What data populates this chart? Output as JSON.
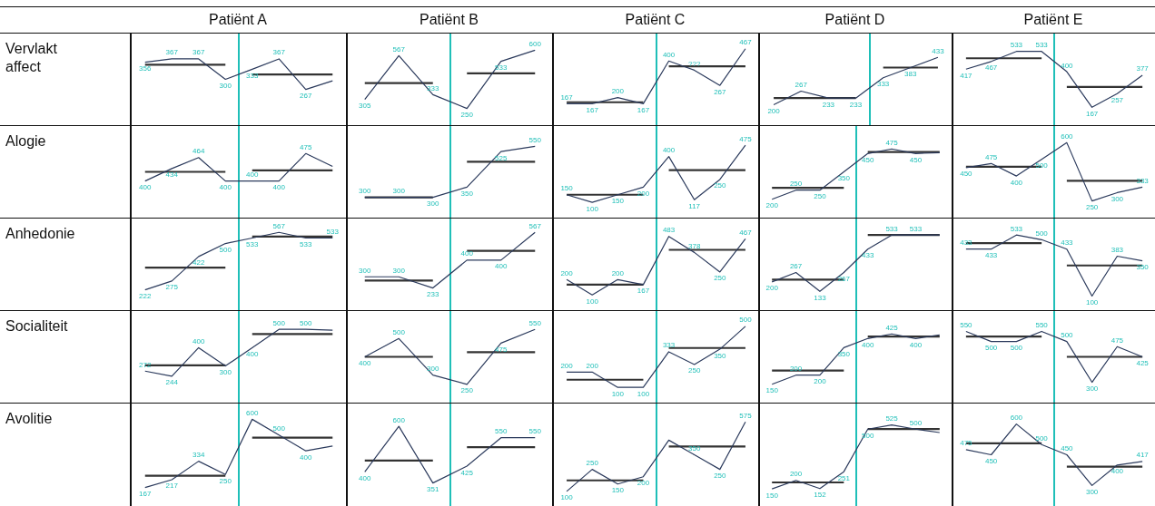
{
  "chart_data": [
    {
      "type": "line",
      "title": "Patiënt A",
      "ylabel": "Vervlakt affect",
      "categories": [
        null,
        null,
        null,
        null,
        null,
        null,
        null,
        null
      ],
      "ylim": [
        150,
        450
      ],
      "marker": "none",
      "series": [
        {
          "color": "#2b3a5c",
          "values": [
            356,
            367,
            367,
            300,
            333,
            367,
            267,
            295
          ],
          "value_labels": [
            "356",
            "367",
            "367",
            "300",
            "333",
            "367",
            "267",
            null
          ]
        },
        {
          "color": "#333333",
          "values": [
            348,
            348,
            348,
            348,
            null,
            null,
            null,
            null
          ]
        },
        {
          "color": "#333333",
          "values": [
            null,
            null,
            null,
            null,
            316,
            316,
            316,
            316
          ]
        }
      ]
    },
    {
      "type": "line",
      "title": "Patiënt B",
      "categories": [
        null,
        null,
        null,
        null,
        null,
        null
      ],
      "ylim": [
        150,
        700
      ],
      "marker": "none",
      "series": [
        {
          "color": "#2b3a5c",
          "values": [
            305,
            567,
            333,
            250,
            533,
            600
          ],
          "value_labels": [
            "305",
            "567",
            "333",
            "250",
            "533",
            "600"
          ]
        },
        {
          "color": "#333333",
          "values": [
            402,
            402,
            402,
            null,
            null,
            null
          ]
        },
        {
          "color": "#333333",
          "values": [
            null,
            null,
            null,
            461,
            461,
            461
          ]
        }
      ]
    },
    {
      "type": "line",
      "title": "Patiënt C",
      "categories": [
        null,
        null,
        null,
        null,
        null,
        null,
        null,
        null
      ],
      "ylim": [
        50,
        550
      ],
      "marker": "none",
      "series": [
        {
          "color": "#2b3a5c",
          "values": [
            167,
            167,
            200,
            167,
            400,
            350,
            267,
            467
          ],
          "value_labels": [
            "167",
            "167",
            "200",
            "167",
            "400",
            "???",
            "267",
            "467"
          ]
        },
        {
          "color": "#333333",
          "values": [
            175,
            175,
            175,
            175,
            null,
            null,
            null,
            null
          ]
        },
        {
          "color": "#333333",
          "values": [
            null,
            null,
            null,
            null,
            371,
            371,
            371,
            371
          ]
        }
      ]
    },
    {
      "type": "line",
      "title": "Patiënt D",
      "categories": [
        null,
        null,
        null,
        null,
        null,
        null,
        null
      ],
      "ylim": [
        100,
        550
      ],
      "marker": "none",
      "series": [
        {
          "color": "#2b3a5c",
          "values": [
            200,
            267,
            233,
            233,
            333,
            383,
            433
          ],
          "value_labels": [
            "200",
            "267",
            "233",
            "233",
            "333",
            "383",
            "433"
          ]
        },
        {
          "color": "#333333",
          "values": [
            233,
            233,
            233,
            233,
            null,
            null,
            null
          ]
        },
        {
          "color": "#333333",
          "values": [
            null,
            null,
            null,
            null,
            383,
            383,
            383
          ]
        }
      ]
    },
    {
      "type": "line",
      "title": "Patiënt E",
      "categories": [
        null,
        null,
        null,
        null,
        null,
        null,
        null,
        null
      ],
      "ylim": [
        50,
        650
      ],
      "marker": "none",
      "series": [
        {
          "color": "#2b3a5c",
          "values": [
            417,
            467,
            533,
            533,
            400,
            167,
            257,
            377
          ],
          "value_labels": [
            "417",
            "467",
            "533",
            "533",
            "400",
            "167",
            "257",
            "377"
          ]
        },
        {
          "color": "#333333",
          "values": [
            488,
            488,
            488,
            488,
            null,
            null,
            null,
            null
          ]
        },
        {
          "color": "#333333",
          "values": [
            null,
            null,
            null,
            null,
            300,
            300,
            300,
            300
          ]
        }
      ]
    },
    {
      "type": "line",
      "ylabel": "Alogie",
      "categories": [
        null,
        null,
        null,
        null,
        null,
        null,
        null,
        null
      ],
      "ylim": [
        300,
        550
      ],
      "marker": "none",
      "series": [
        {
          "color": "#2b3a5c",
          "values": [
            400,
            434,
            464,
            400,
            400,
            400,
            475,
            440
          ],
          "value_labels": [
            "400",
            "434",
            "464",
            "400",
            "400",
            "400",
            "475",
            null
          ]
        },
        {
          "color": "#333333",
          "values": [
            425,
            425,
            425,
            425,
            null,
            null,
            null,
            null
          ]
        },
        {
          "color": "#333333",
          "values": [
            null,
            null,
            null,
            null,
            429,
            429,
            429,
            429
          ]
        }
      ]
    },
    {
      "type": "line",
      "categories": [
        null,
        null,
        null,
        null,
        null,
        null
      ],
      "ylim": [
        200,
        650
      ],
      "marker": "none",
      "series": [
        {
          "color": "#2b3a5c",
          "values": [
            300,
            300,
            300,
            350,
            525,
            550
          ],
          "value_labels": [
            "300",
            "300",
            "300",
            "350",
            "525",
            "550"
          ]
        },
        {
          "color": "#333333",
          "values": [
            300,
            300,
            300,
            null,
            null,
            null
          ]
        },
        {
          "color": "#333333",
          "values": [
            null,
            null,
            null,
            475,
            475,
            475
          ]
        }
      ]
    },
    {
      "type": "line",
      "categories": [
        null,
        null,
        null,
        null,
        null,
        null,
        null,
        null
      ],
      "ylim": [
        0,
        600
      ],
      "marker": "none",
      "series": [
        {
          "color": "#2b3a5c",
          "values": [
            150,
            100,
            150,
            200,
            400,
            117,
            250,
            475
          ],
          "value_labels": [
            "150",
            "100",
            "150",
            "200",
            "400",
            "117",
            "250",
            "475"
          ]
        },
        {
          "color": "#333333",
          "values": [
            150,
            150,
            150,
            150,
            null,
            null,
            null,
            null
          ]
        },
        {
          "color": "#333333",
          "values": [
            null,
            null,
            null,
            null,
            311,
            311,
            311,
            311
          ]
        }
      ]
    },
    {
      "type": "line",
      "categories": [
        null,
        null,
        null,
        null,
        null,
        null,
        null,
        null
      ],
      "ylim": [
        100,
        600
      ],
      "marker": "none",
      "series": [
        {
          "color": "#2b3a5c",
          "values": [
            200,
            250,
            250,
            350,
            450,
            475,
            450,
            455
          ],
          "value_labels": [
            "200",
            "250",
            "250",
            "350",
            "450",
            "475",
            "450",
            null
          ]
        },
        {
          "color": "#333333",
          "values": [
            263,
            263,
            263,
            263,
            null,
            null,
            null,
            null
          ]
        },
        {
          "color": "#333333",
          "values": [
            null,
            null,
            null,
            null,
            458,
            458,
            458,
            458
          ]
        }
      ]
    },
    {
      "type": "line",
      "categories": [
        null,
        null,
        null,
        null,
        null,
        null,
        null,
        null
      ],
      "ylim": [
        150,
        700
      ],
      "marker": "none",
      "series": [
        {
          "color": "#2b3a5c",
          "values": [
            450,
            475,
            400,
            500,
            600,
            250,
            300,
            333
          ],
          "value_labels": [
            "450",
            "475",
            "400",
            "500",
            "600",
            "250",
            "300",
            "333"
          ]
        },
        {
          "color": "#333333",
          "values": [
            456,
            456,
            456,
            456,
            null,
            null,
            null,
            null
          ]
        },
        {
          "color": "#333333",
          "values": [
            null,
            null,
            null,
            null,
            371,
            371,
            371,
            371
          ]
        }
      ]
    },
    {
      "type": "line",
      "ylabel": "Anhedonie",
      "categories": [
        null,
        null,
        null,
        null,
        null,
        null,
        null,
        null
      ],
      "ylim": [
        100,
        650
      ],
      "marker": "none",
      "series": [
        {
          "color": "#2b3a5c",
          "values": [
            222,
            275,
            422,
            500,
            533,
            567,
            533,
            533
          ],
          "value_labels": [
            "222",
            "275",
            "422",
            "500",
            "533",
            "567",
            "533",
            "533"
          ]
        },
        {
          "color": "#333333",
          "values": [
            355,
            355,
            355,
            355,
            null,
            null,
            null,
            null
          ]
        },
        {
          "color": "#333333",
          "values": [
            null,
            null,
            null,
            null,
            542,
            542,
            542,
            542
          ]
        }
      ]
    },
    {
      "type": "line",
      "categories": [
        null,
        null,
        null,
        null,
        null,
        null
      ],
      "ylim": [
        100,
        650
      ],
      "marker": "none",
      "series": [
        {
          "color": "#2b3a5c",
          "values": [
            300,
            300,
            233,
            400,
            400,
            567
          ],
          "value_labels": [
            "300",
            "300",
            "233",
            "400",
            "400",
            "567"
          ]
        },
        {
          "color": "#333333",
          "values": [
            278,
            278,
            278,
            null,
            null,
            null
          ]
        },
        {
          "color": "#333333",
          "values": [
            null,
            null,
            null,
            456,
            456,
            456
          ]
        }
      ]
    },
    {
      "type": "line",
      "categories": [
        null,
        null,
        null,
        null,
        null,
        null,
        null,
        null
      ],
      "ylim": [
        0,
        600
      ],
      "marker": "none",
      "series": [
        {
          "color": "#2b3a5c",
          "values": [
            200,
            100,
            200,
            167,
            483,
            378,
            250,
            467
          ],
          "value_labels": [
            "200",
            "100",
            "200",
            "167",
            "483",
            "378",
            "250",
            "467"
          ]
        },
        {
          "color": "#333333",
          "values": [
            167,
            167,
            167,
            167,
            null,
            null,
            null,
            null
          ]
        },
        {
          "color": "#333333",
          "values": [
            null,
            null,
            null,
            null,
            395,
            395,
            395,
            395
          ]
        }
      ]
    },
    {
      "type": "line",
      "categories": [
        null,
        null,
        null,
        null,
        null,
        null,
        null,
        null
      ],
      "ylim": [
        0,
        650
      ],
      "marker": "none",
      "series": [
        {
          "color": "#2b3a5c",
          "values": [
            200,
            267,
            133,
            267,
            433,
            533,
            533,
            533
          ],
          "value_labels": [
            "200",
            "267",
            "133",
            "267",
            "433",
            "533",
            "533",
            null
          ]
        },
        {
          "color": "#333333",
          "values": [
            217,
            217,
            217,
            217,
            null,
            null,
            null,
            null
          ]
        },
        {
          "color": "#333333",
          "values": [
            null,
            null,
            null,
            null,
            533,
            533,
            533,
            533
          ]
        }
      ]
    },
    {
      "type": "line",
      "categories": [
        null,
        null,
        null,
        null,
        null,
        null,
        null,
        null
      ],
      "ylim": [
        0,
        650
      ],
      "marker": "none",
      "series": [
        {
          "color": "#2b3a5c",
          "values": [
            433,
            433,
            533,
            500,
            433,
            100,
            383,
            350
          ],
          "value_labels": [
            "433",
            "433",
            "533",
            "500",
            "433",
            "100",
            "383",
            "350"
          ]
        },
        {
          "color": "#333333",
          "values": [
            475,
            475,
            475,
            475,
            null,
            null,
            null,
            null
          ]
        },
        {
          "color": "#333333",
          "values": [
            null,
            null,
            null,
            null,
            317,
            317,
            317,
            317
          ]
        }
      ]
    },
    {
      "type": "line",
      "ylabel": "Socialiteit",
      "categories": [
        null,
        null,
        null,
        null,
        null,
        null,
        null,
        null
      ],
      "ylim": [
        100,
        600
      ],
      "marker": "none",
      "series": [
        {
          "color": "#2b3a5c",
          "values": [
            272,
            244,
            400,
            300,
            400,
            500,
            500,
            495
          ],
          "value_labels": [
            "272",
            "244",
            "400",
            "300",
            "400",
            "500",
            "500",
            null
          ]
        },
        {
          "color": "#333333",
          "values": [
            304,
            304,
            304,
            304,
            null,
            null,
            null,
            null
          ]
        },
        {
          "color": "#333333",
          "values": [
            null,
            null,
            null,
            null,
            474,
            474,
            474,
            474
          ]
        }
      ]
    },
    {
      "type": "line",
      "categories": [
        null,
        null,
        null,
        null,
        null,
        null
      ],
      "ylim": [
        150,
        650
      ],
      "marker": "none",
      "series": [
        {
          "color": "#2b3a5c",
          "values": [
            400,
            500,
            300,
            250,
            475,
            550
          ],
          "value_labels": [
            "400",
            "500",
            "300",
            "250",
            "475",
            "550"
          ]
        },
        {
          "color": "#333333",
          "values": [
            400,
            400,
            400,
            null,
            null,
            null
          ]
        },
        {
          "color": "#333333",
          "values": [
            null,
            null,
            null,
            425,
            425,
            425
          ]
        }
      ]
    },
    {
      "type": "line",
      "categories": [
        null,
        null,
        null,
        null,
        null,
        null,
        null,
        null
      ],
      "ylim": [
        0,
        600
      ],
      "marker": "none",
      "series": [
        {
          "color": "#2b3a5c",
          "values": [
            200,
            200,
            100,
            100,
            333,
            250,
            350,
            500
          ],
          "value_labels": [
            "200",
            "200",
            "100",
            "100",
            "333",
            "250",
            "350",
            "500"
          ]
        },
        {
          "color": "#333333",
          "values": [
            150,
            150,
            150,
            150,
            null,
            null,
            null,
            null
          ]
        },
        {
          "color": "#333333",
          "values": [
            null,
            null,
            null,
            null,
            358,
            358,
            358,
            358
          ]
        }
      ]
    },
    {
      "type": "line",
      "categories": [
        null,
        null,
        null,
        null,
        null,
        null,
        null,
        null
      ],
      "ylim": [
        50,
        550
      ],
      "marker": "none",
      "series": [
        {
          "color": "#2b3a5c",
          "values": [
            150,
            200,
            200,
            350,
            400,
            425,
            400,
            420
          ],
          "value_labels": [
            "150",
            "200",
            "200",
            "350",
            "400",
            "425",
            "400",
            null
          ]
        },
        {
          "color": "#333333",
          "values": [
            225,
            225,
            225,
            225,
            null,
            null,
            null,
            null
          ]
        },
        {
          "color": "#333333",
          "values": [
            null,
            null,
            null,
            null,
            411,
            411,
            411,
            411
          ]
        }
      ]
    },
    {
      "type": "line",
      "categories": [
        null,
        null,
        null,
        null,
        null,
        null,
        null,
        null
      ],
      "ylim": [
        200,
        650
      ],
      "marker": "none",
      "series": [
        {
          "color": "#2b3a5c",
          "values": [
            550,
            500,
            500,
            550,
            500,
            300,
            475,
            425
          ],
          "value_labels": [
            "550",
            "500",
            "500",
            "550",
            "500",
            "300",
            "475",
            "425"
          ]
        },
        {
          "color": "#333333",
          "values": [
            525,
            525,
            525,
            525,
            null,
            null,
            null,
            null
          ]
        },
        {
          "color": "#333333",
          "values": [
            null,
            null,
            null,
            null,
            425,
            425,
            425,
            425
          ]
        }
      ]
    },
    {
      "type": "line",
      "ylabel": "Avolitie",
      "categories": [
        null,
        null,
        null,
        null,
        null,
        null,
        null,
        null
      ],
      "ylim": [
        50,
        700
      ],
      "marker": "none",
      "series": [
        {
          "color": "#2b3a5c",
          "values": [
            167,
            217,
            334,
            250,
            600,
            500,
            400,
            430
          ],
          "value_labels": [
            "167",
            "217",
            "334",
            "250",
            "600",
            "500",
            "400",
            null
          ]
        },
        {
          "color": "#333333",
          "values": [
            242,
            242,
            242,
            242,
            null,
            null,
            null,
            null
          ]
        },
        {
          "color": "#333333",
          "values": [
            null,
            null,
            null,
            null,
            483,
            483,
            483,
            483
          ]
        }
      ]
    },
    {
      "type": "line",
      "categories": [
        null,
        null,
        null,
        null,
        null,
        null
      ],
      "ylim": [
        250,
        700
      ],
      "marker": "none",
      "series": [
        {
          "color": "#2b3a5c",
          "values": [
            400,
            600,
            351,
            425,
            550,
            550
          ],
          "value_labels": [
            "400",
            "600",
            "351",
            "425",
            "550",
            "550"
          ]
        },
        {
          "color": "#333333",
          "values": [
            450,
            450,
            450,
            null,
            null,
            null
          ]
        },
        {
          "color": "#333333",
          "values": [
            null,
            null,
            null,
            508,
            508,
            508
          ]
        }
      ]
    },
    {
      "type": "line",
      "categories": [
        null,
        null,
        null,
        null,
        null,
        null,
        null,
        null
      ],
      "ylim": [
        0,
        700
      ],
      "marker": "none",
      "series": [
        {
          "color": "#2b3a5c",
          "values": [
            100,
            250,
            150,
            200,
            450,
            350,
            250,
            575
          ],
          "value_labels": [
            "100",
            "250",
            "150",
            "200",
            null,
            "350",
            "250",
            "575"
          ]
        },
        {
          "color": "#333333",
          "values": [
            175,
            175,
            175,
            175,
            null,
            null,
            null,
            null
          ]
        },
        {
          "color": "#333333",
          "values": [
            null,
            null,
            null,
            null,
            406,
            406,
            406,
            406
          ]
        }
      ]
    },
    {
      "type": "line",
      "categories": [
        null,
        null,
        null,
        null,
        null,
        null,
        null,
        null
      ],
      "ylim": [
        50,
        650
      ],
      "marker": "none",
      "series": [
        {
          "color": "#2b3a5c",
          "values": [
            150,
            200,
            152,
            251,
            500,
            525,
            500,
            480
          ],
          "value_labels": [
            "150",
            "200",
            "152",
            "251",
            "500",
            "525",
            "500",
            null
          ]
        },
        {
          "color": "#333333",
          "values": [
            188,
            188,
            188,
            188,
            null,
            null,
            null,
            null
          ]
        },
        {
          "color": "#333333",
          "values": [
            null,
            null,
            null,
            null,
            501,
            501,
            501,
            501
          ]
        }
      ]
    },
    {
      "type": "line",
      "categories": [
        null,
        null,
        null,
        null,
        null,
        null,
        null,
        null
      ],
      "ylim": [
        200,
        700
      ],
      "marker": "none",
      "series": [
        {
          "color": "#2b3a5c",
          "values": [
            475,
            450,
            600,
            500,
            450,
            300,
            400,
            417
          ],
          "value_labels": [
            "475",
            "450",
            "600",
            "500",
            "450",
            "300",
            "400",
            "417"
          ]
        },
        {
          "color": "#333333",
          "values": [
            506,
            506,
            506,
            506,
            null,
            null,
            null,
            null
          ]
        },
        {
          "color": "#333333",
          "values": [
            null,
            null,
            null,
            null,
            392,
            392,
            392,
            392
          ]
        }
      ]
    }
  ]
}
